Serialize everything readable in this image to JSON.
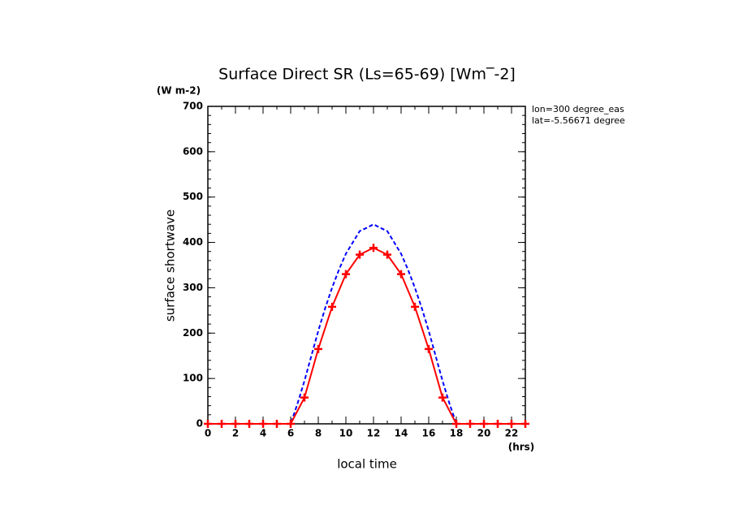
{
  "chart_data": {
    "type": "line",
    "title": "Surface Direct SR (Ls=65-69) [Wm‾-2]",
    "y_units": "(W m-2)",
    "y_label": "surface shortwave",
    "x_label": "local time",
    "x_units": "(hrs)",
    "annotations": [
      "lon=300 degree_eas",
      "lat=-5.56671 degree"
    ],
    "xlim": [
      0,
      23
    ],
    "ylim": [
      0,
      700
    ],
    "xticks": [
      0,
      2,
      4,
      6,
      8,
      10,
      12,
      14,
      16,
      18,
      20,
      22
    ],
    "yticks": [
      0,
      100,
      200,
      300,
      400,
      500,
      600,
      700
    ],
    "series": [
      {
        "color": "#0000ff",
        "dash": true,
        "marker": false,
        "x": [
          0,
          1,
          2,
          3,
          4,
          5,
          6,
          6.5,
          7,
          7.5,
          8,
          8.5,
          9,
          9.5,
          10,
          10.5,
          11,
          11.5,
          12,
          12.5,
          13,
          13.5,
          14,
          14.5,
          15,
          15.5,
          16,
          16.5,
          17,
          17.5,
          18,
          19,
          20,
          21,
          22,
          23
        ],
        "values": [
          0,
          0,
          0,
          0,
          0,
          0,
          0,
          45,
          95,
          150,
          205,
          255,
          300,
          340,
          375,
          400,
          425,
          432,
          440,
          432,
          425,
          400,
          375,
          340,
          300,
          255,
          205,
          150,
          95,
          45,
          0,
          0,
          0,
          0,
          0,
          0
        ]
      },
      {
        "color": "#ff0000",
        "dash": false,
        "marker": true,
        "x": [
          0,
          1,
          2,
          3,
          4,
          5,
          6,
          7,
          8,
          9,
          10,
          11,
          12,
          13,
          14,
          15,
          16,
          17,
          18,
          19,
          20,
          21,
          22,
          23
        ],
        "values": [
          0,
          0,
          0,
          0,
          0,
          0,
          0,
          58,
          165,
          258,
          330,
          373,
          388,
          373,
          330,
          258,
          165,
          58,
          0,
          0,
          0,
          0,
          0,
          0
        ]
      }
    ]
  }
}
